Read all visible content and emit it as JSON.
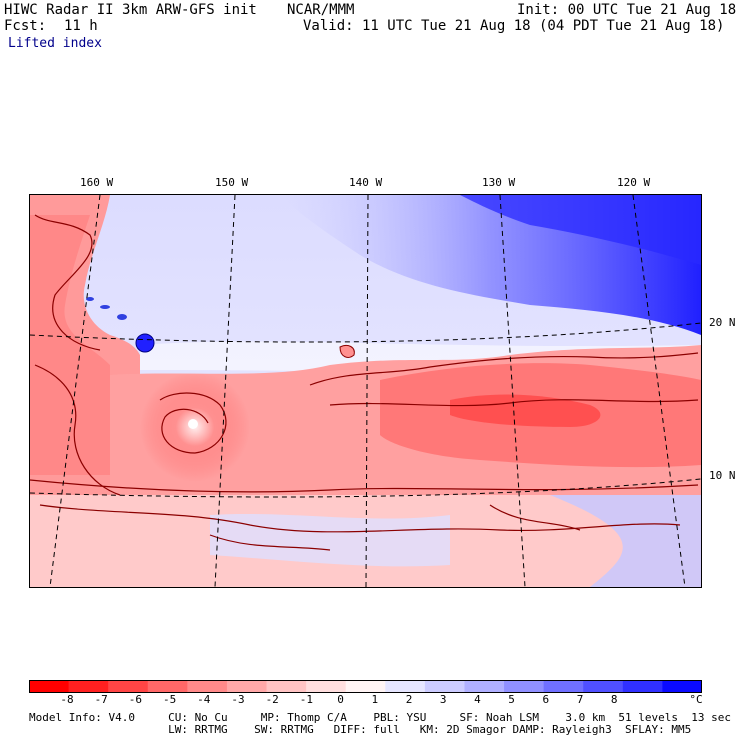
{
  "header": {
    "title": "HIWC Radar II 3km ARW-GFS init",
    "org": "NCAR/MMM",
    "init": "Init: 00 UTC Tue 21 Aug 18",
    "fcst_label": "Fcst:",
    "fcst_value": "11 h",
    "valid": "Valid: 11 UTC Tue 21 Aug 18 (04 PDT Tue 21 Aug 18)",
    "field": "Lifted index"
  },
  "map": {
    "lon_labels": [
      "160 W",
      "150 W",
      "140 W",
      "130 W",
      "120 W"
    ],
    "lat_labels": [
      "20 N",
      "10 N"
    ]
  },
  "colorbar": {
    "ticks": [
      "-8",
      "-7",
      "-6",
      "-5",
      "-4",
      "-3",
      "-2",
      "-1",
      "0",
      "1",
      "2",
      "3",
      "4",
      "5",
      "6",
      "7",
      "8"
    ],
    "unit": "°C",
    "colors": [
      "#ff0000",
      "#ff2020",
      "#ff4545",
      "#ff6868",
      "#ff8a8a",
      "#ffa8a8",
      "#ffc4c4",
      "#ffdede",
      "#fff4f4",
      "#e6e6ff",
      "#ccccff",
      "#b0b0ff",
      "#9090ff",
      "#7070ff",
      "#5050ff",
      "#3030ff",
      "#0a0aff"
    ]
  },
  "footer": {
    "line1": "Model Info: V4.0     CU: No Cu     MP: Thomp C/A    PBL: YSU     SF: Noah LSM    3.0 km  51 levels  13 sec",
    "line2": "                     LW: RRTMG    SW: RRTMG   DIFF: full   KM: 2D Smagor DAMP: Rayleigh3  SFLAY: MM5"
  }
}
